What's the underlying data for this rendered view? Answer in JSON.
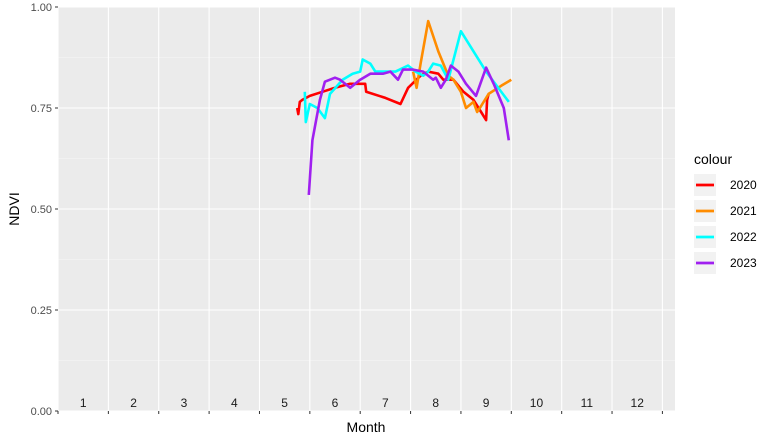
{
  "chart_data": {
    "type": "line",
    "xlabel": "Month",
    "ylabel": "NDVI",
    "xlim": [
      0.5,
      12.75
    ],
    "ylim": [
      0,
      1
    ],
    "y_ticks": [
      0.0,
      0.25,
      0.5,
      0.75,
      1.0
    ],
    "y_tick_labels": [
      "0.00",
      "0.25",
      "0.50",
      "0.75",
      "1.00"
    ],
    "month_labels": [
      "1",
      "2",
      "3",
      "4",
      "5",
      "6",
      "7",
      "8",
      "9",
      "10",
      "11",
      "12"
    ],
    "grid": true,
    "legend": {
      "title": "colour",
      "position": "right"
    },
    "series": [
      {
        "name": "2020",
        "color": "#ff0000",
        "points": [
          [
            5.25,
            0.75
          ],
          [
            5.27,
            0.735
          ],
          [
            5.3,
            0.765
          ],
          [
            5.35,
            0.77
          ],
          [
            5.5,
            0.78
          ],
          [
            5.75,
            0.79
          ],
          [
            6.0,
            0.8
          ],
          [
            6.3,
            0.81
          ],
          [
            6.6,
            0.81
          ],
          [
            6.62,
            0.79
          ],
          [
            7.0,
            0.775
          ],
          [
            7.3,
            0.76
          ],
          [
            7.45,
            0.8
          ],
          [
            7.7,
            0.83
          ],
          [
            7.85,
            0.84
          ],
          [
            8.05,
            0.835
          ],
          [
            8.15,
            0.82
          ],
          [
            8.35,
            0.82
          ],
          [
            8.55,
            0.79
          ],
          [
            8.75,
            0.77
          ],
          [
            8.9,
            0.74
          ],
          [
            9.0,
            0.72
          ],
          [
            9.02,
            0.77
          ],
          [
            9.05,
            0.785
          ]
        ]
      },
      {
        "name": "2021",
        "color": "#ff8c00",
        "points": [
          [
            7.55,
            0.84
          ],
          [
            7.62,
            0.8
          ],
          [
            7.7,
            0.86
          ],
          [
            7.85,
            0.965
          ],
          [
            8.05,
            0.89
          ],
          [
            8.25,
            0.83
          ],
          [
            8.35,
            0.82
          ],
          [
            8.5,
            0.79
          ],
          [
            8.6,
            0.75
          ],
          [
            8.75,
            0.765
          ],
          [
            8.82,
            0.74
          ],
          [
            8.9,
            0.755
          ],
          [
            9.05,
            0.785
          ],
          [
            9.3,
            0.805
          ],
          [
            9.5,
            0.82
          ]
        ]
      },
      {
        "name": "2022",
        "color": "#00ffff",
        "points": [
          [
            5.4,
            0.79
          ],
          [
            5.42,
            0.715
          ],
          [
            5.5,
            0.76
          ],
          [
            5.65,
            0.75
          ],
          [
            5.8,
            0.725
          ],
          [
            5.9,
            0.785
          ],
          [
            6.15,
            0.82
          ],
          [
            6.35,
            0.835
          ],
          [
            6.5,
            0.84
          ],
          [
            6.55,
            0.87
          ],
          [
            6.7,
            0.86
          ],
          [
            6.8,
            0.84
          ],
          [
            7.0,
            0.84
          ],
          [
            7.2,
            0.84
          ],
          [
            7.45,
            0.855
          ],
          [
            7.6,
            0.84
          ],
          [
            7.75,
            0.83
          ],
          [
            7.85,
            0.84
          ],
          [
            7.95,
            0.86
          ],
          [
            8.1,
            0.855
          ],
          [
            8.25,
            0.82
          ],
          [
            8.5,
            0.94
          ],
          [
            9.0,
            0.84
          ],
          [
            9.45,
            0.765
          ]
        ]
      },
      {
        "name": "2023",
        "color": "#a020f0",
        "points": [
          [
            5.48,
            0.535
          ],
          [
            5.55,
            0.67
          ],
          [
            5.7,
            0.77
          ],
          [
            5.8,
            0.815
          ],
          [
            6.0,
            0.825
          ],
          [
            6.1,
            0.82
          ],
          [
            6.3,
            0.8
          ],
          [
            6.5,
            0.82
          ],
          [
            6.7,
            0.835
          ],
          [
            6.95,
            0.835
          ],
          [
            7.1,
            0.84
          ],
          [
            7.25,
            0.82
          ],
          [
            7.35,
            0.845
          ],
          [
            7.55,
            0.845
          ],
          [
            7.75,
            0.84
          ],
          [
            7.95,
            0.82
          ],
          [
            8.0,
            0.825
          ],
          [
            8.1,
            0.8
          ],
          [
            8.2,
            0.82
          ],
          [
            8.3,
            0.855
          ],
          [
            8.45,
            0.84
          ],
          [
            8.6,
            0.81
          ],
          [
            8.8,
            0.78
          ],
          [
            9.0,
            0.85
          ],
          [
            9.15,
            0.81
          ],
          [
            9.35,
            0.75
          ],
          [
            9.45,
            0.67
          ]
        ]
      }
    ]
  }
}
